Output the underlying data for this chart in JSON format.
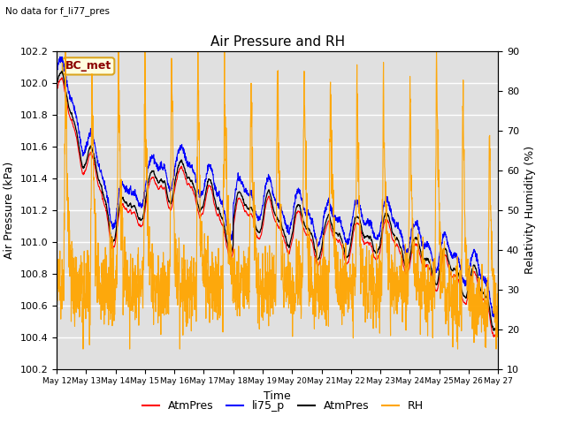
{
  "title": "Air Pressure and RH",
  "top_left_text": "No data for f_li77_pres",
  "box_label": "BC_met",
  "xlabel": "Time",
  "ylabel_left": "Air Pressure (kPa)",
  "ylabel_right": "Relativity Humidity (%)",
  "ylim_left": [
    100.2,
    102.2
  ],
  "ylim_right": [
    10,
    90
  ],
  "yticks_left": [
    100.2,
    100.4,
    100.6,
    100.8,
    101.0,
    101.2,
    101.4,
    101.6,
    101.8,
    102.0,
    102.2
  ],
  "yticks_right": [
    10,
    20,
    30,
    40,
    50,
    60,
    70,
    80,
    90
  ],
  "plot_bg_color": "#e0e0e0",
  "grid_color": "#ffffff",
  "n_points": 2000
}
